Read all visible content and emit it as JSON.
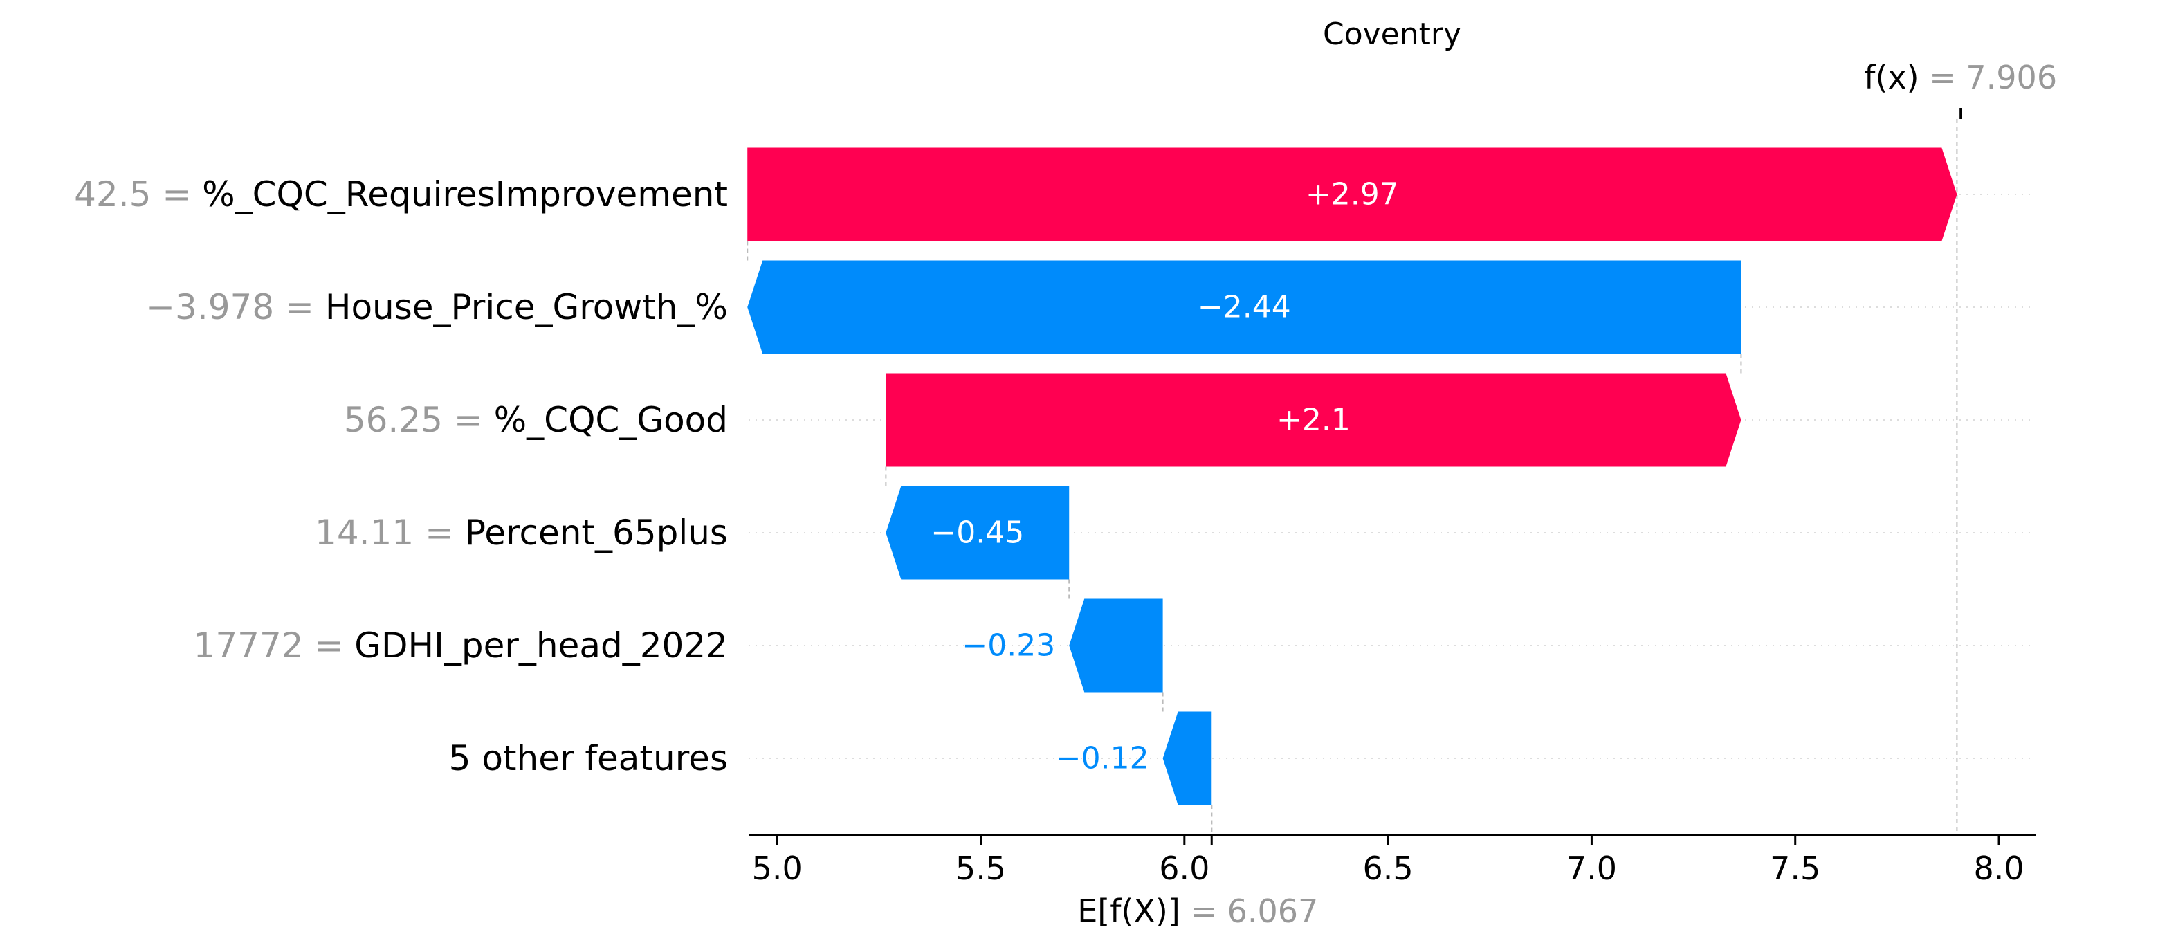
{
  "chart_data": {
    "type": "waterfall",
    "title": "Coventry",
    "features": [
      {
        "name": "%_CQC_RequiresImprovement",
        "value": "42.5",
        "contribution": 2.97,
        "label": "+2.97"
      },
      {
        "name": "House_Price_Growth_%",
        "value": "−3.978",
        "contribution": -2.44,
        "label": "−2.44"
      },
      {
        "name": "%_CQC_Good",
        "value": "56.25",
        "contribution": 2.1,
        "label": "+2.1"
      },
      {
        "name": "Percent_65plus",
        "value": "14.11",
        "contribution": -0.45,
        "label": "−0.45"
      },
      {
        "name": "GDHI_per_head_2022",
        "value": "17772",
        "contribution": -0.23,
        "label": "−0.23"
      },
      {
        "name": "5 other features",
        "value": "",
        "contribution": -0.12,
        "label": "−0.12"
      }
    ],
    "base_value": 6.067,
    "base_value_label": "6.067",
    "base_label": "E[f(X)]",
    "output_value": 7.906,
    "output_value_label": "7.906",
    "output_label": "f(x)",
    "xlim": [
      4.93,
      8.09
    ],
    "x_ticks": [
      5.0,
      5.5,
      6.0,
      6.5,
      7.0,
      7.5,
      8.0
    ],
    "x_tick_labels": [
      "5.0",
      "5.5",
      "6.0",
      "6.5",
      "7.0",
      "7.5",
      "8.0"
    ],
    "grid": false,
    "colors": {
      "positive": "#ff0051",
      "negative": "#008bfb",
      "value_text": "#999999",
      "guide_line": "#bbbbbb",
      "axis": "#000000"
    }
  }
}
